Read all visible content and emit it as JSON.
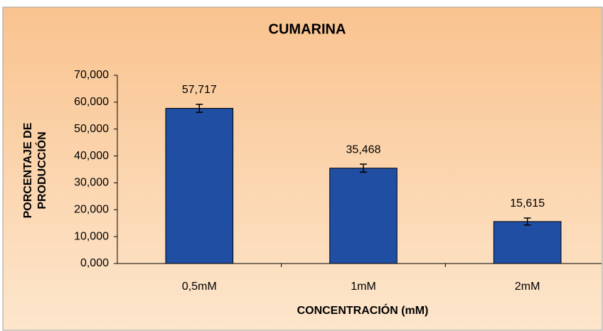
{
  "chart_data": {
    "type": "bar",
    "title": "CUMARINA",
    "x_label": "CONCENTRACIÓN (mM)",
    "y_label": [
      "PORCENTAJE DE",
      "PRODUCCIÓN"
    ],
    "categories": [
      "0,5mM",
      "1mM",
      "2mM"
    ],
    "values": [
      57.717,
      35.468,
      15.615
    ],
    "value_labels": [
      "57,717",
      "35,468",
      "15,615"
    ],
    "errors": [
      1.5,
      1.5,
      1.3
    ],
    "color": "#1f4ea3",
    "ylim": [
      0,
      70
    ],
    "yticks": [
      {
        "value": 0,
        "label": "0,000"
      },
      {
        "value": 10,
        "label": "10,000"
      },
      {
        "value": 20,
        "label": "20,000"
      },
      {
        "value": 30,
        "label": "30,000"
      },
      {
        "value": 40,
        "label": "40,000"
      },
      {
        "value": 50,
        "label": "50,000"
      },
      {
        "value": 60,
        "label": "60,000"
      },
      {
        "value": 70,
        "label": "70,000"
      }
    ],
    "grid": false
  }
}
